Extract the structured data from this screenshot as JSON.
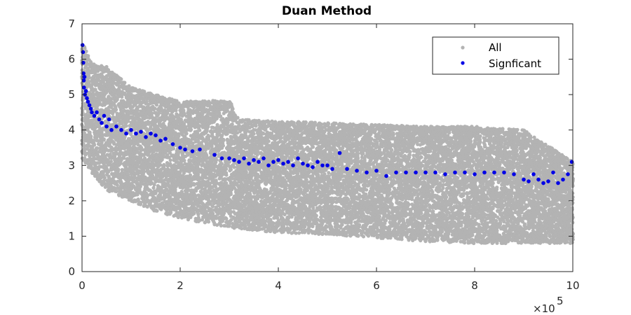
{
  "chart_data": {
    "type": "scatter",
    "title": "Duan Method",
    "xlabel": "",
    "ylabel": "",
    "xlim": [
      0,
      1000000
    ],
    "ylim": [
      0,
      7
    ],
    "x_ticks": [
      0,
      200000,
      400000,
      600000,
      800000,
      1000000
    ],
    "x_tick_labels": [
      "0",
      "2",
      "4",
      "6",
      "8",
      "10"
    ],
    "x_exponent_label": "×10",
    "x_exponent_power": "5",
    "y_ticks": [
      0,
      1,
      2,
      3,
      4,
      5,
      6,
      7
    ],
    "y_tick_labels": [
      "0",
      "1",
      "2",
      "3",
      "4",
      "5",
      "6",
      "7"
    ],
    "grid": false,
    "legend_position": "top-right",
    "series": [
      {
        "name": "All",
        "color": "#b3b3b3",
        "description_band": [
          {
            "x": 0,
            "low": 3.2,
            "high": 6.5
          },
          {
            "x": 20000,
            "low": 2.8,
            "high": 5.9
          },
          {
            "x": 50000,
            "low": 2.3,
            "high": 5.8
          },
          {
            "x": 100000,
            "low": 2.0,
            "high": 5.2
          },
          {
            "x": 150000,
            "low": 1.7,
            "high": 5.0
          },
          {
            "x": 200000,
            "low": 1.5,
            "high": 4.8
          },
          {
            "x": 300000,
            "low": 1.25,
            "high": 4.85
          },
          {
            "x": 320000,
            "low": 1.2,
            "high": 4.3
          },
          {
            "x": 400000,
            "low": 1.1,
            "high": 4.25
          },
          {
            "x": 500000,
            "low": 1.05,
            "high": 4.2
          },
          {
            "x": 600000,
            "low": 0.95,
            "high": 4.15
          },
          {
            "x": 700000,
            "low": 0.85,
            "high": 4.1
          },
          {
            "x": 800000,
            "low": 0.8,
            "high": 4.1
          },
          {
            "x": 900000,
            "low": 0.8,
            "high": 4.0
          },
          {
            "x": 1000000,
            "low": 0.8,
            "high": 3.1
          }
        ]
      },
      {
        "name": "Signficant",
        "color": "#0000e6",
        "points": [
          [
            1000,
            6.4
          ],
          [
            2000,
            6.2
          ],
          [
            2500,
            5.9
          ],
          [
            3000,
            5.6
          ],
          [
            3500,
            5.4
          ],
          [
            4000,
            5.2
          ],
          [
            5000,
            5.5
          ],
          [
            6000,
            5.0
          ],
          [
            8000,
            5.1
          ],
          [
            10000,
            4.9
          ],
          [
            12000,
            4.8
          ],
          [
            15000,
            4.7
          ],
          [
            18000,
            4.6
          ],
          [
            20000,
            4.5
          ],
          [
            25000,
            4.4
          ],
          [
            30000,
            4.5
          ],
          [
            35000,
            4.3
          ],
          [
            40000,
            4.2
          ],
          [
            45000,
            4.4
          ],
          [
            50000,
            4.1
          ],
          [
            55000,
            4.3
          ],
          [
            60000,
            4.0
          ],
          [
            70000,
            4.1
          ],
          [
            80000,
            4.0
          ],
          [
            90000,
            3.9
          ],
          [
            100000,
            4.0
          ],
          [
            110000,
            3.9
          ],
          [
            120000,
            3.95
          ],
          [
            130000,
            3.8
          ],
          [
            140000,
            3.9
          ],
          [
            150000,
            3.85
          ],
          [
            160000,
            3.7
          ],
          [
            170000,
            3.75
          ],
          [
            185000,
            3.6
          ],
          [
            200000,
            3.5
          ],
          [
            210000,
            3.45
          ],
          [
            225000,
            3.4
          ],
          [
            240000,
            3.45
          ],
          [
            270000,
            3.3
          ],
          [
            285000,
            3.2
          ],
          [
            300000,
            3.2
          ],
          [
            310000,
            3.15
          ],
          [
            320000,
            3.1
          ],
          [
            330000,
            3.2
          ],
          [
            340000,
            3.05
          ],
          [
            350000,
            3.15
          ],
          [
            360000,
            3.1
          ],
          [
            370000,
            3.2
          ],
          [
            380000,
            3.0
          ],
          [
            390000,
            3.1
          ],
          [
            400000,
            3.15
          ],
          [
            410000,
            3.05
          ],
          [
            420000,
            3.1
          ],
          [
            430000,
            3.0
          ],
          [
            440000,
            3.2
          ],
          [
            450000,
            3.05
          ],
          [
            460000,
            3.0
          ],
          [
            470000,
            2.95
          ],
          [
            480000,
            3.1
          ],
          [
            490000,
            3.0
          ],
          [
            500000,
            3.0
          ],
          [
            510000,
            2.9
          ],
          [
            525000,
            3.35
          ],
          [
            540000,
            2.9
          ],
          [
            560000,
            2.85
          ],
          [
            580000,
            2.8
          ],
          [
            600000,
            2.85
          ],
          [
            620000,
            2.7
          ],
          [
            640000,
            2.8
          ],
          [
            660000,
            2.8
          ],
          [
            680000,
            2.8
          ],
          [
            700000,
            2.8
          ],
          [
            720000,
            2.8
          ],
          [
            740000,
            2.75
          ],
          [
            760000,
            2.8
          ],
          [
            780000,
            2.8
          ],
          [
            800000,
            2.75
          ],
          [
            820000,
            2.8
          ],
          [
            840000,
            2.8
          ],
          [
            860000,
            2.8
          ],
          [
            880000,
            2.75
          ],
          [
            900000,
            2.6
          ],
          [
            910000,
            2.55
          ],
          [
            920000,
            2.75
          ],
          [
            930000,
            2.6
          ],
          [
            940000,
            2.5
          ],
          [
            950000,
            2.55
          ],
          [
            960000,
            2.8
          ],
          [
            970000,
            2.5
          ],
          [
            980000,
            2.6
          ],
          [
            990000,
            2.75
          ],
          [
            998000,
            3.1
          ]
        ]
      }
    ]
  }
}
